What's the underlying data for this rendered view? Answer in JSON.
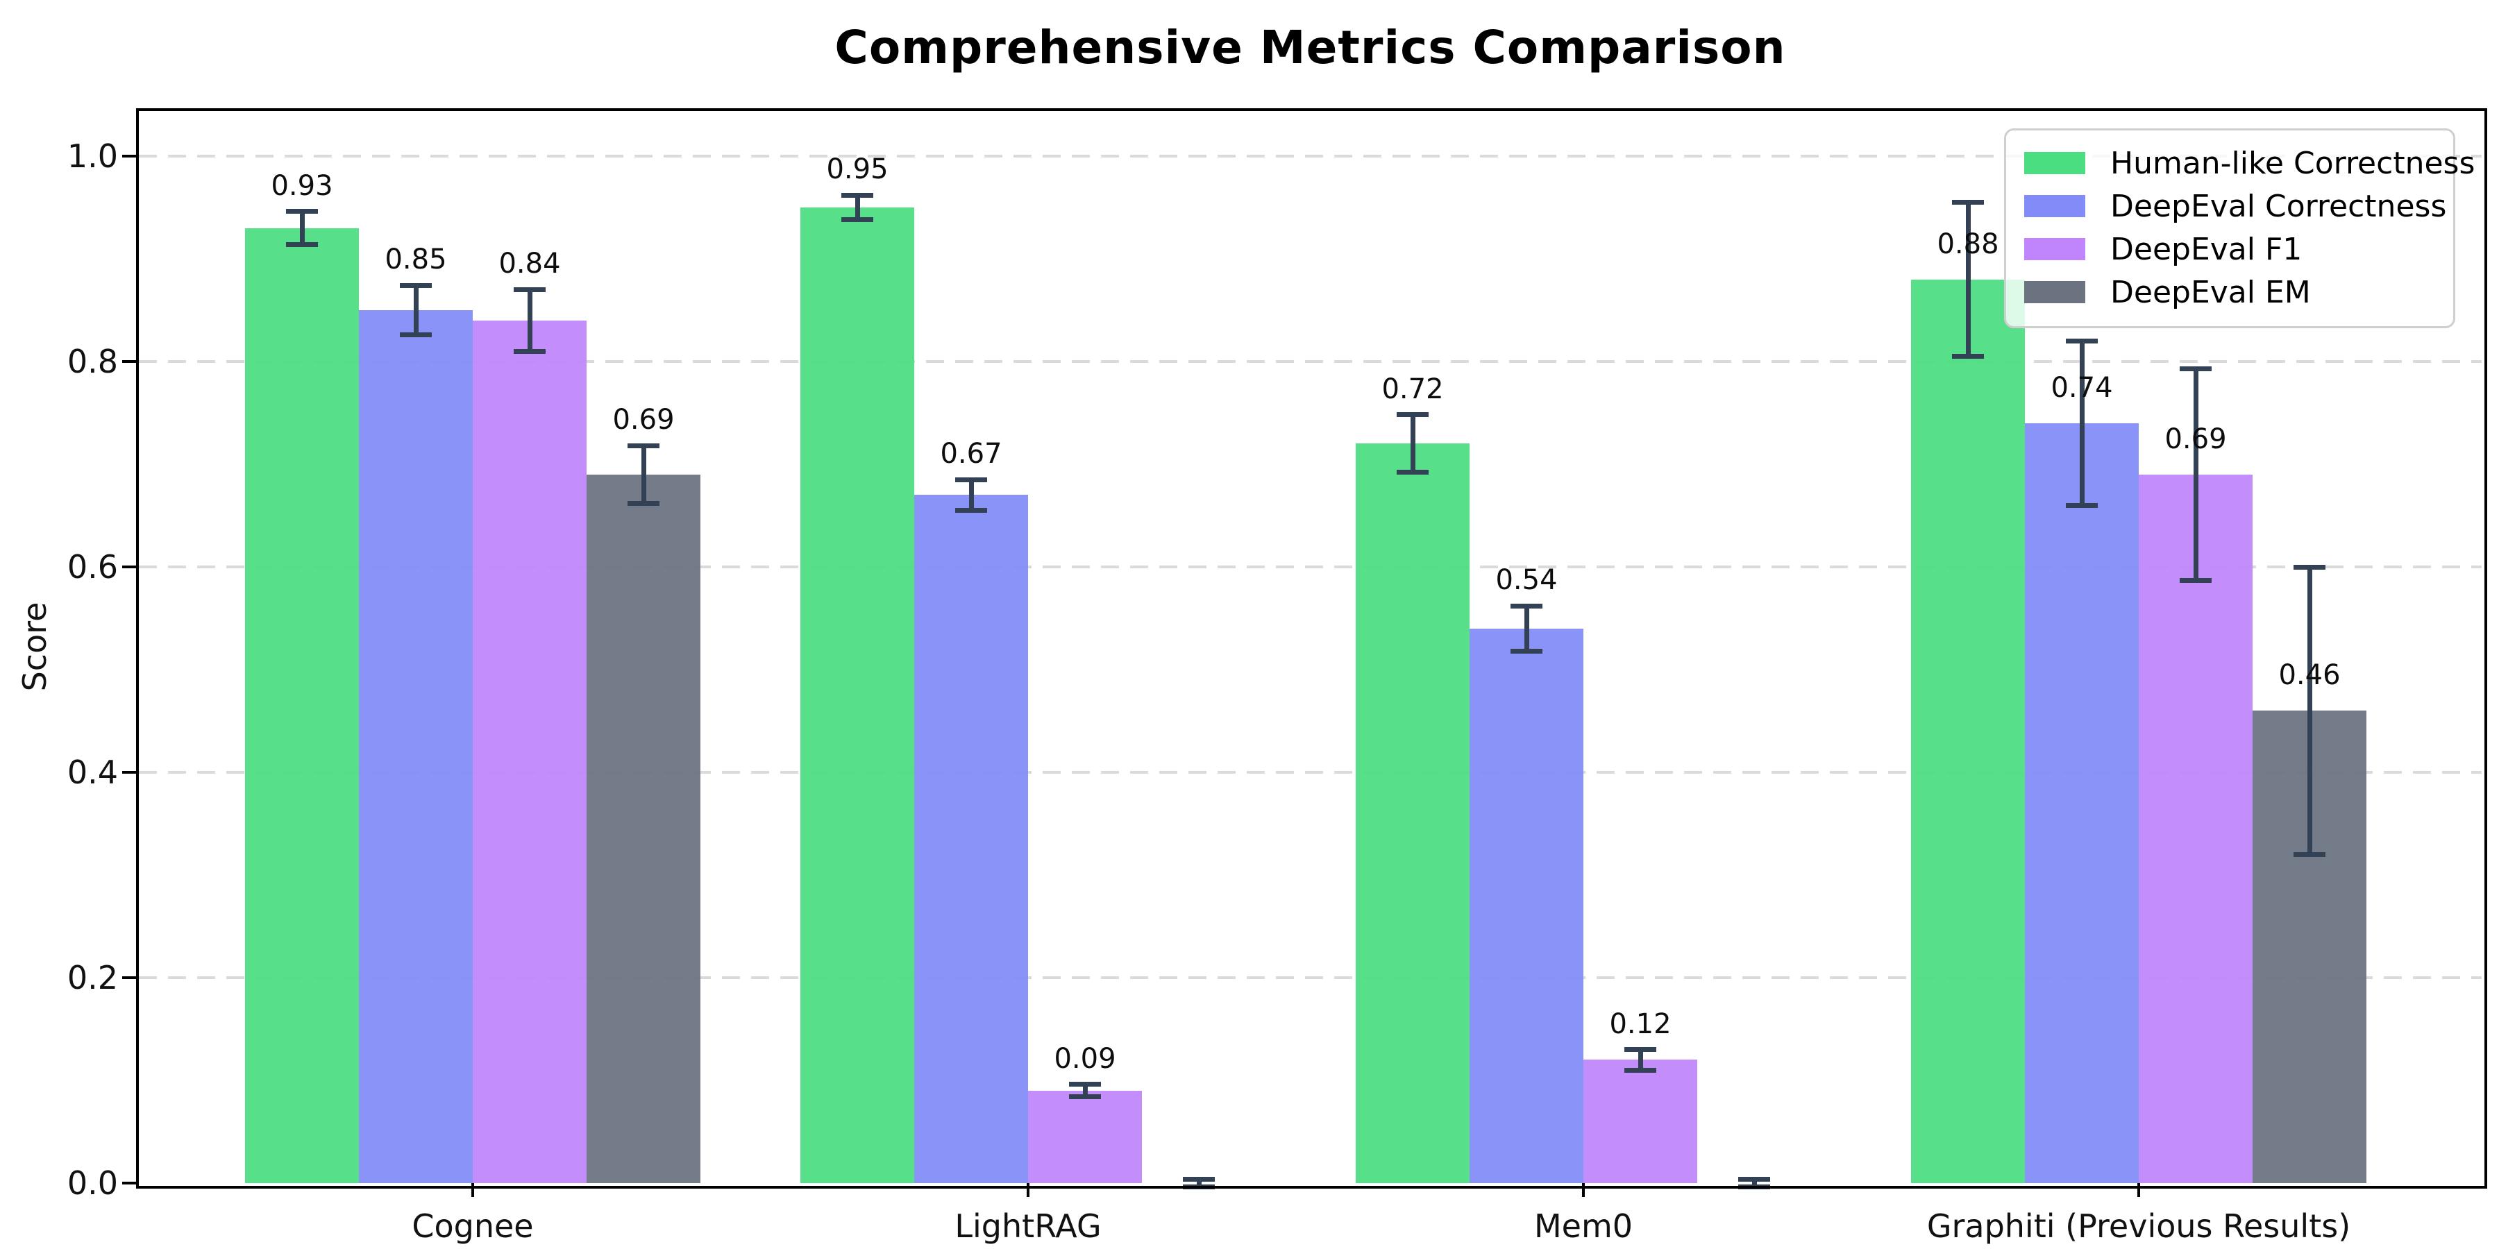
{
  "chart_data": {
    "type": "bar",
    "title": "Comprehensive Metrics Comparison",
    "xlabel": "",
    "ylabel": "Score",
    "ylim": [
      0,
      1.044
    ],
    "grid": "horizontal dashed lines at 0.2 intervals",
    "legend_position": "upper right",
    "y_tick_labels": [
      "0.0",
      "0.2",
      "0.4",
      "0.6",
      "0.8",
      "1.0"
    ],
    "y_tick_values": [
      0.0,
      0.2,
      0.4,
      0.6,
      0.8,
      1.0
    ],
    "categories": [
      "Cognee",
      "LightRAG",
      "Mem0",
      "Graphiti (Previous Results)"
    ],
    "series": [
      {
        "name": "Human-like Correctness",
        "color": "#4ade80",
        "values": [
          0.93,
          0.95,
          0.72,
          0.88
        ],
        "errors": [
          0.016,
          0.012,
          0.028,
          0.075
        ],
        "value_labels": [
          "0.93",
          "0.95",
          "0.72",
          "0.88"
        ]
      },
      {
        "name": "DeepEval Correctness",
        "color": "#818cf8",
        "values": [
          0.85,
          0.67,
          0.54,
          0.74
        ],
        "errors": [
          0.024,
          0.015,
          0.022,
          0.08
        ],
        "value_labels": [
          "0.85",
          "0.67",
          "0.54",
          "0.74"
        ]
      },
      {
        "name": "DeepEval F1",
        "color": "#c084fc",
        "values": [
          0.84,
          0.09,
          0.12,
          0.69
        ],
        "errors": [
          0.03,
          0.006,
          0.01,
          0.103
        ],
        "value_labels": [
          "0.84",
          "0.09",
          "0.12",
          "0.69"
        ]
      },
      {
        "name": "DeepEval EM",
        "color": "#6b7280",
        "values": [
          0.69,
          0.0,
          0.0,
          0.46
        ],
        "errors": [
          0.028,
          0.004,
          0.004,
          0.14
        ],
        "value_labels": [
          "0.69",
          null,
          null,
          "0.46"
        ]
      }
    ],
    "error_bar_color": "#334155",
    "gridline_color": "#dadada",
    "background_color": "#ffffff"
  }
}
